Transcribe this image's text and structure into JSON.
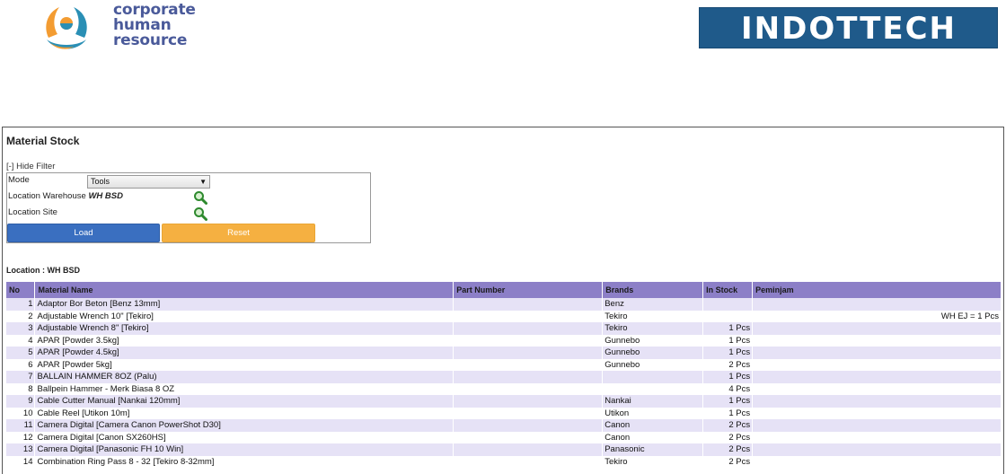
{
  "header": {
    "left_logo_icon": "chr-hands-globe-icon",
    "left_logo_lines": [
      "corporate",
      "human",
      "resource"
    ],
    "right_logo_text": "INDOTTECH",
    "colors": {
      "chr_text": "#4a5a9a",
      "indottech_bg": "#1f5a8a"
    }
  },
  "page": {
    "title": "Material Stock",
    "hide_filter_label": "[-] Hide Filter"
  },
  "filter": {
    "mode_label": "Mode",
    "mode_value": "Tools",
    "location_warehouse_label": "Location Warehouse",
    "location_warehouse_value": "WH BSD",
    "location_site_label": "Location Site",
    "load_label": "Load",
    "reset_label": "Reset",
    "search_icon": "search-magnifier-icon"
  },
  "location_line": "Location : WH BSD",
  "table": {
    "columns": [
      "No",
      "Material Name",
      "Part Number",
      "Brands",
      "In Stock",
      "Peminjam"
    ],
    "rows": [
      {
        "no": "1",
        "name": "Adaptor Bor Beton [Benz 13mm]",
        "part": "",
        "brand": "Benz",
        "stock": "",
        "pinjam": ""
      },
      {
        "no": "2",
        "name": "Adjustable Wrench 10\" [Tekiro]",
        "part": "",
        "brand": "Tekiro",
        "stock": "",
        "pinjam": "WH EJ = 1 Pcs"
      },
      {
        "no": "3",
        "name": "Adjustable Wrench 8\" [Tekiro]",
        "part": "",
        "brand": "Tekiro",
        "stock": "1 Pcs",
        "pinjam": ""
      },
      {
        "no": "4",
        "name": "APAR [Powder 3.5kg]",
        "part": "",
        "brand": "Gunnebo",
        "stock": "1 Pcs",
        "pinjam": ""
      },
      {
        "no": "5",
        "name": "APAR [Powder 4.5kg]",
        "part": "",
        "brand": "Gunnebo",
        "stock": "1 Pcs",
        "pinjam": ""
      },
      {
        "no": "6",
        "name": "APAR [Powder 5kg]",
        "part": "",
        "brand": "Gunnebo",
        "stock": "2 Pcs",
        "pinjam": ""
      },
      {
        "no": "7",
        "name": "BALLAIN HAMMER 8OZ (Palu)",
        "part": "",
        "brand": "",
        "stock": "1 Pcs",
        "pinjam": ""
      },
      {
        "no": "8",
        "name": "Ballpein Hammer - Merk Biasa 8 OZ",
        "part": "",
        "brand": "",
        "stock": "4 Pcs",
        "pinjam": ""
      },
      {
        "no": "9",
        "name": "Cable Cutter Manual [Nankai 120mm]",
        "part": "",
        "brand": "Nankai",
        "stock": "1 Pcs",
        "pinjam": ""
      },
      {
        "no": "10",
        "name": "Cable Reel [Utikon 10m]",
        "part": "",
        "brand": "Utikon",
        "stock": "1 Pcs",
        "pinjam": ""
      },
      {
        "no": "11",
        "name": "Camera Digital [Camera Canon PowerShot D30]",
        "part": "",
        "brand": "Canon",
        "stock": "2 Pcs",
        "pinjam": ""
      },
      {
        "no": "12",
        "name": "Camera Digital [Canon SX260HS]",
        "part": "",
        "brand": "Canon",
        "stock": "2 Pcs",
        "pinjam": ""
      },
      {
        "no": "13",
        "name": "Camera Digital [Panasonic FH 10 Win]",
        "part": "",
        "brand": "Panasonic",
        "stock": "2 Pcs",
        "pinjam": ""
      },
      {
        "no": "14",
        "name": "Combination Ring Pass 8 - 32 [Tekiro 8-32mm]",
        "part": "",
        "brand": "Tekiro",
        "stock": "2 Pcs",
        "pinjam": ""
      }
    ]
  }
}
